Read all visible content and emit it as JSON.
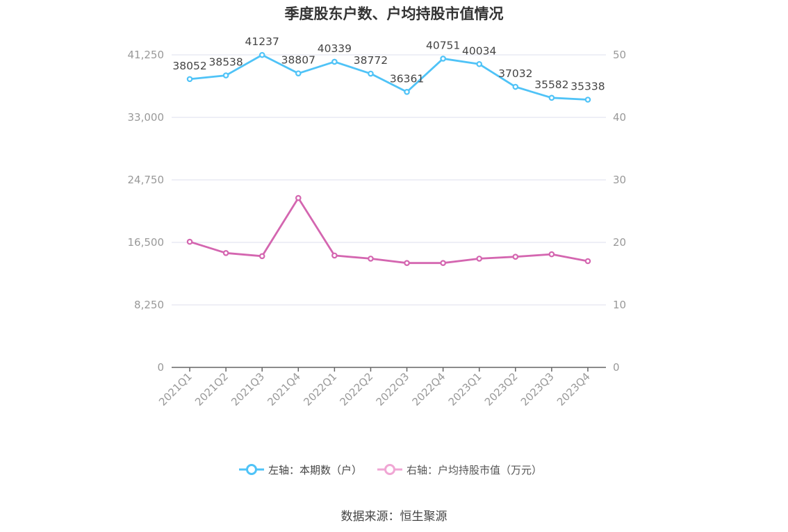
{
  "title": "季度股东户数、户均持股市值情况",
  "source": "数据来源：恒生聚源",
  "colors": {
    "left_series": "#4fc3f7",
    "right_series": "#d466b0",
    "grid": "#e3e5f0",
    "axis": "#999999"
  },
  "legend": {
    "left": "左轴：本期数（户）",
    "right": "右轴：户均持股市值（万元）"
  },
  "chart_data": {
    "type": "line",
    "title": "季度股东户数、户均持股市值情况",
    "categories": [
      "2021Q1",
      "2021Q2",
      "2021Q3",
      "2021Q4",
      "2022Q1",
      "2022Q2",
      "2022Q3",
      "2022Q4",
      "2023Q1",
      "2023Q2",
      "2023Q3",
      "2023Q4"
    ],
    "left_axis": {
      "ylim": [
        0,
        41250
      ],
      "ticks": [
        0,
        8250,
        16500,
        24750,
        33000,
        41250
      ],
      "tick_labels": [
        "0",
        "8,250",
        "16,500",
        "24,750",
        "33,000",
        "41,250"
      ]
    },
    "right_axis": {
      "ylim": [
        0,
        50
      ],
      "ticks": [
        0,
        10,
        20,
        30,
        40,
        50
      ],
      "tick_labels": [
        "0",
        "10",
        "20",
        "30",
        "40",
        "50"
      ]
    },
    "series": [
      {
        "name": "左轴：本期数（户）",
        "axis": "left",
        "values": [
          38052,
          38538,
          41237,
          38807,
          40339,
          38772,
          36361,
          40751,
          40034,
          37032,
          35582,
          35338
        ],
        "labels": [
          "38052",
          "38538",
          "41237",
          "38807",
          "40339",
          "38772",
          "36361",
          "40751",
          "40034",
          "37032",
          "35582",
          "35338"
        ]
      },
      {
        "name": "右轴：户均持股市值（万元）",
        "axis": "right",
        "values": [
          20.1,
          18.3,
          17.8,
          27.1,
          17.9,
          17.4,
          16.7,
          16.7,
          17.4,
          17.7,
          18.1,
          17.0
        ]
      }
    ],
    "grid": true,
    "legend_position": "bottom"
  }
}
